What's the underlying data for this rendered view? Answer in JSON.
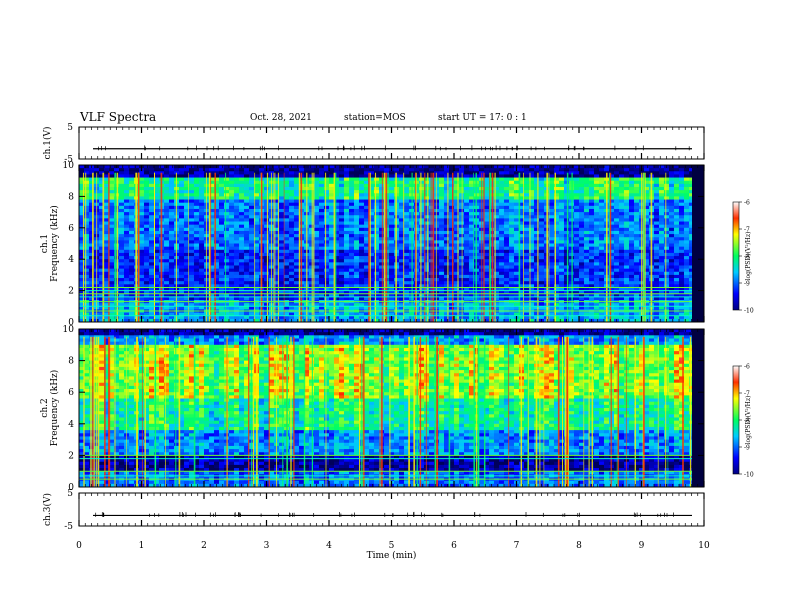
{
  "header": {
    "title": "VLF Spectra",
    "date": "Oct. 28, 2021",
    "station": "station=MOS",
    "start": "start  UT =   17: 0  : 1"
  },
  "chart_data": [
    {
      "type": "line",
      "ylabel": "ch.1(V)",
      "ylim": [
        -5,
        5
      ],
      "y_ticks": [
        "5",
        "-5"
      ],
      "trace_level": -1.8,
      "xlim": [
        0,
        10
      ]
    },
    {
      "type": "heatmap",
      "ylabel": "ch.1\nFrequency (kHz)",
      "ylabel_line1": "ch.1",
      "ylabel_line2": "Frequency (kHz)",
      "ylim": [
        0,
        10
      ],
      "y_ticks": [
        "0",
        "2",
        "4",
        "6",
        "8",
        "10"
      ],
      "xlim": [
        0,
        10
      ],
      "colorbar": {
        "label": "log(PSD)(V²/Hz)",
        "range": [
          -10,
          -6
        ],
        "ticks": [
          "-6",
          "-7",
          "-8",
          "-9",
          "-10"
        ]
      }
    },
    {
      "type": "heatmap",
      "ylabel": "ch.2\nFrequency (kHz)",
      "ylabel_line1": "ch.2",
      "ylabel_line2": "Frequency (kHz)",
      "ylim": [
        0,
        10
      ],
      "y_ticks": [
        "0",
        "2",
        "4",
        "6",
        "8",
        "10"
      ],
      "xlim": [
        0,
        10
      ],
      "colorbar": {
        "label": "log(PSD)(V²/Hz)",
        "range": [
          -10,
          -6
        ],
        "ticks": [
          "-6",
          "-7",
          "-8",
          "-9",
          "-10"
        ]
      }
    },
    {
      "type": "line",
      "ylabel": "ch.3(V)",
      "ylim": [
        -5,
        5
      ],
      "y_ticks": [
        "5",
        "-5"
      ],
      "trace_level": -1.8,
      "xlim": [
        0,
        10
      ],
      "xlabel": "Time  (min)",
      "x_ticks": [
        "0",
        "1",
        "2",
        "3",
        "4",
        "5",
        "6",
        "7",
        "8",
        "9",
        "10"
      ]
    }
  ]
}
